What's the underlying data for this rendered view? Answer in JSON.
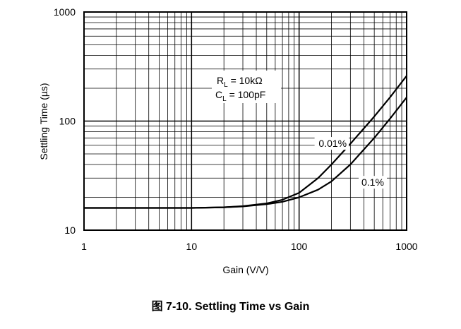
{
  "caption": "图 7-10. Settling Time vs Gain",
  "chart_data": {
    "type": "line",
    "xlabel": "Gain (V/V)",
    "ylabel": "Settling Time (µs)",
    "xscale": "log",
    "yscale": "log",
    "xlim": [
      1,
      1000
    ],
    "ylim": [
      10,
      1000
    ],
    "xticks": [
      "1",
      "10",
      "100",
      "1000"
    ],
    "yticks": [
      "10",
      "100",
      "1000"
    ],
    "grid": true,
    "annotation": {
      "line1_main": "R",
      "line1_sub": "L",
      "line1_rest": " = 10kΩ",
      "line2_main": "C",
      "line2_sub": "L",
      "line2_rest": " = 100pF"
    },
    "series": [
      {
        "name": "0.01%",
        "x": [
          1,
          10,
          20,
          30,
          50,
          70,
          100,
          150,
          200,
          300,
          500,
          700,
          1000
        ],
        "y": [
          16,
          16,
          16.2,
          16.6,
          17.6,
          19,
          22,
          30,
          40,
          62,
          110,
          165,
          260
        ]
      },
      {
        "name": "0.1%",
        "x": [
          1,
          10,
          20,
          30,
          50,
          70,
          100,
          150,
          200,
          300,
          500,
          700,
          1000
        ],
        "y": [
          16,
          16,
          16.2,
          16.5,
          17.3,
          18.2,
          20,
          23.5,
          28,
          40,
          70,
          105,
          165
        ]
      }
    ]
  }
}
